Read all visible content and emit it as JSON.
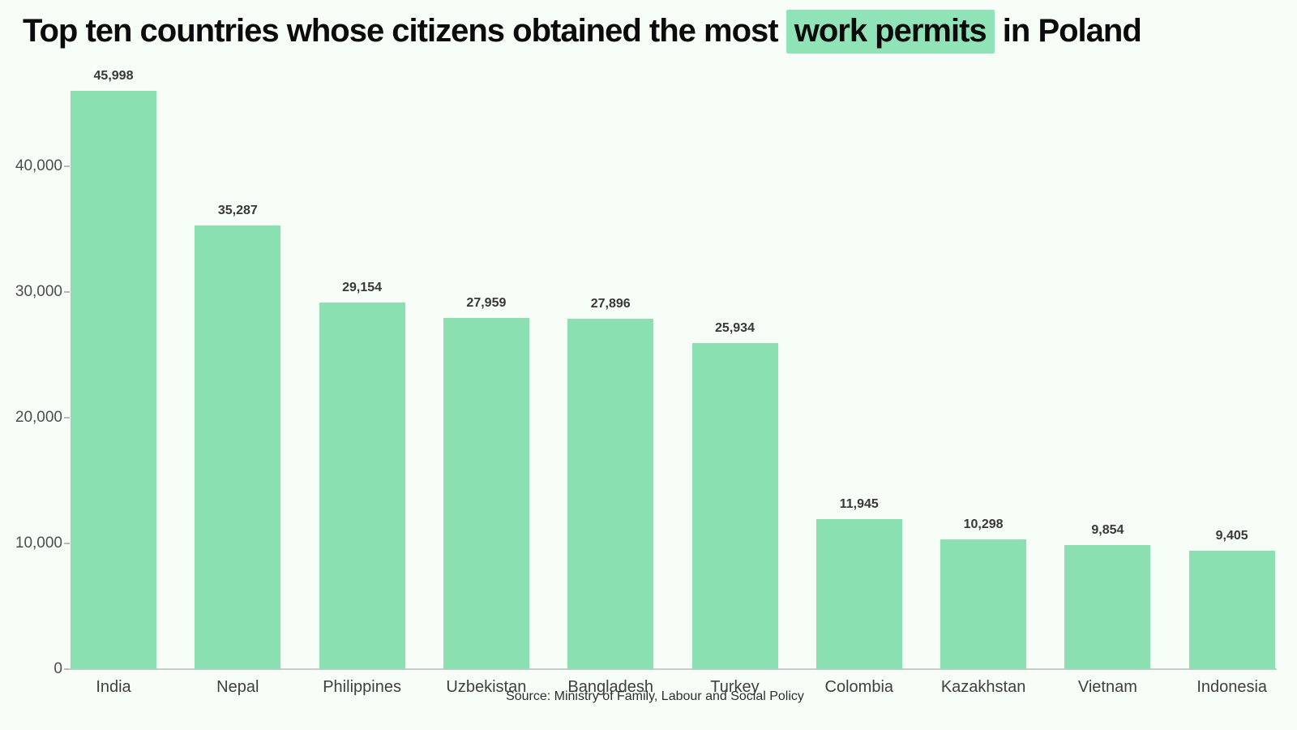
{
  "page": {
    "title_parts": {
      "before": "Top ten countries whose citizens obtained the most ",
      "highlight": "work permits",
      "after": " in Poland"
    },
    "source": "Source: Ministry of Family, Labour and Social Policy"
  },
  "colors": {
    "background": "#f7fdf7",
    "bar": "#8ae0b1",
    "title_highlight": "#90e3b7",
    "value_label": "#383838",
    "axis_label": "#4d4d4d",
    "category_label": "#3f3f3f",
    "baseline": "#cbcbcb"
  },
  "chart_data": {
    "type": "bar",
    "title": "Top ten countries whose citizens obtained the most work permits in Poland",
    "categories": [
      "India",
      "Nepal",
      "Philippines",
      "Uzbekistan",
      "Bangladesh",
      "Turkey",
      "Colombia",
      "Kazakhstan",
      "Vietnam",
      "Indonesia"
    ],
    "values": [
      45998,
      35287,
      29154,
      27959,
      27896,
      25934,
      11945,
      10298,
      9854,
      9405
    ],
    "value_labels": [
      "45,998",
      "35,287",
      "29,154",
      "27,959",
      "27,896",
      "25,934",
      "11,945",
      "10,298",
      "9,854",
      "9,405"
    ],
    "xlabel": "",
    "ylabel": "",
    "ylim": [
      0,
      46500
    ],
    "yticks": [
      0,
      10000,
      20000,
      30000,
      40000
    ],
    "ytick_labels": [
      "0",
      "10,000",
      "20,000",
      "30,000",
      "40,000"
    ],
    "grid": false,
    "legend": null,
    "bar_labels_shown": true,
    "orientation": "vertical"
  }
}
